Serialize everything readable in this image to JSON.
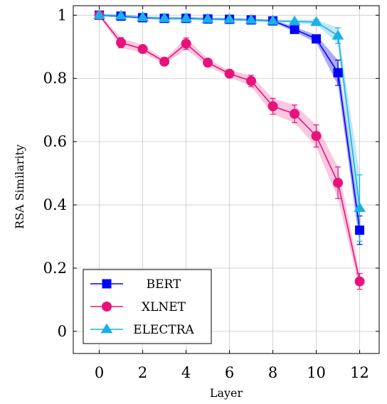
{
  "chart_data": {
    "type": "line",
    "title": "",
    "xlabel": "Layer",
    "ylabel": "RSA Similarity",
    "xlim": [
      -1.2,
      12.9
    ],
    "ylim": [
      -0.07,
      1.03
    ],
    "x_ticks": [
      "0",
      "2",
      "4",
      "6",
      "8",
      "10",
      "12"
    ],
    "y_ticks": [
      "0",
      "0.2",
      "0.4",
      "0.6",
      "0.8",
      "1"
    ],
    "grid": true,
    "legend_position": "bottom-left",
    "x": [
      0,
      1,
      2,
      3,
      4,
      5,
      6,
      7,
      8,
      9,
      10,
      11,
      12
    ],
    "series": [
      {
        "name": "BERT",
        "color": "#0000ff",
        "band_color": "#6666ee",
        "marker": "square",
        "values": [
          1.0,
          0.997,
          0.992,
          0.99,
          0.99,
          0.988,
          0.987,
          0.985,
          0.982,
          0.955,
          0.925,
          0.818,
          0.32
        ],
        "error": [
          0.004,
          0.004,
          0.004,
          0.004,
          0.004,
          0.004,
          0.004,
          0.004,
          0.004,
          0.008,
          0.012,
          0.04,
          0.045
        ]
      },
      {
        "name": "XLNET",
        "color": "#e8127a",
        "band_color": "#f59ac4",
        "marker": "circle",
        "values": [
          1.0,
          0.913,
          0.893,
          0.853,
          0.91,
          0.85,
          0.815,
          0.792,
          0.712,
          0.688,
          0.618,
          0.47,
          0.158
        ],
        "error": [
          0.004,
          0.016,
          0.012,
          0.008,
          0.018,
          0.012,
          0.01,
          0.018,
          0.025,
          0.028,
          0.035,
          0.05,
          0.025
        ]
      },
      {
        "name": "ELECTRA",
        "color": "#1ab0e8",
        "band_color": "#8dd5f2",
        "marker": "triangle",
        "values": [
          1.0,
          0.998,
          0.993,
          0.99,
          0.99,
          0.988,
          0.987,
          0.985,
          0.982,
          0.98,
          0.978,
          0.935,
          0.39
        ],
        "error": [
          0.004,
          0.004,
          0.004,
          0.004,
          0.004,
          0.004,
          0.004,
          0.004,
          0.004,
          0.006,
          0.008,
          0.025,
          0.105
        ]
      }
    ]
  }
}
